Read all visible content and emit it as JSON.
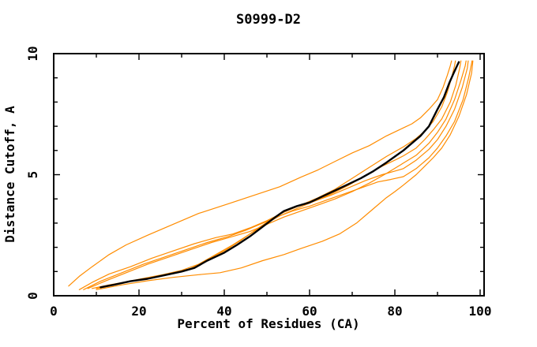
{
  "figure": {
    "background": "#ffffff"
  },
  "chart_data": {
    "type": "line",
    "title": "S0999-D2",
    "xlabel": "Percent of Residues (CA)",
    "ylabel": "Distance Cutoff, A",
    "xlim": [
      0,
      101
    ],
    "ylim": [
      0,
      10
    ],
    "grid": false,
    "legend": "none",
    "x_major_ticks": [
      0,
      20,
      40,
      60,
      80,
      100
    ],
    "x_tick_labels": [
      "0",
      "20",
      "40",
      "60",
      "80",
      "100"
    ],
    "x_minor_ticks": [
      10,
      30,
      50,
      70,
      90
    ],
    "y_major_ticks": [
      0,
      5,
      10
    ],
    "y_tick_labels": [
      "0",
      "5",
      "10"
    ],
    "y_minor_ticks": [
      1,
      2,
      3,
      4,
      6,
      7,
      8,
      9
    ],
    "colors": {
      "axis": "#000000",
      "primary_curve": "#000000",
      "comparison_curves": "#ff8c00"
    },
    "series": [
      {
        "name": "orange-outlier",
        "color": "#ff8c00",
        "width": 1.2,
        "points": [
          [
            3.5,
            0.4
          ],
          [
            6,
            0.8
          ],
          [
            9,
            1.2
          ],
          [
            13,
            1.7
          ],
          [
            17,
            2.1
          ],
          [
            22,
            2.5
          ],
          [
            28,
            2.95
          ],
          [
            34,
            3.4
          ],
          [
            41,
            3.8
          ],
          [
            47,
            4.15
          ],
          [
            53,
            4.5
          ],
          [
            58,
            4.9
          ],
          [
            62,
            5.2
          ],
          [
            66,
            5.55
          ],
          [
            70,
            5.9
          ],
          [
            74,
            6.2
          ],
          [
            78,
            6.6
          ],
          [
            81,
            6.85
          ],
          [
            84,
            7.1
          ],
          [
            86,
            7.35
          ],
          [
            88,
            7.7
          ],
          [
            90,
            8.1
          ],
          [
            91.3,
            8.6
          ],
          [
            92.3,
            9.1
          ],
          [
            93,
            9.5
          ],
          [
            93.3,
            9.7
          ]
        ]
      },
      {
        "name": "orange-2",
        "color": "#ff8c00",
        "width": 1.2,
        "points": [
          [
            6,
            0.25
          ],
          [
            9,
            0.55
          ],
          [
            13,
            0.9
          ],
          [
            18,
            1.2
          ],
          [
            23,
            1.55
          ],
          [
            28,
            1.85
          ],
          [
            33,
            2.15
          ],
          [
            38,
            2.4
          ],
          [
            42,
            2.55
          ],
          [
            46,
            2.8
          ],
          [
            50,
            3.1
          ],
          [
            54,
            3.45
          ],
          [
            58,
            3.75
          ],
          [
            62,
            4.05
          ],
          [
            66,
            4.4
          ],
          [
            70,
            4.85
          ],
          [
            74,
            5.3
          ],
          [
            78,
            5.75
          ],
          [
            82,
            6.15
          ],
          [
            85,
            6.5
          ],
          [
            87,
            6.8
          ],
          [
            89,
            7.2
          ],
          [
            91,
            7.8
          ],
          [
            92.3,
            8.4
          ],
          [
            93.3,
            9.0
          ],
          [
            94,
            9.5
          ],
          [
            94.2,
            9.7
          ]
        ]
      },
      {
        "name": "orange-3",
        "color": "#ff8c00",
        "width": 1.2,
        "points": [
          [
            7,
            0.25
          ],
          [
            11,
            0.6
          ],
          [
            16,
            0.95
          ],
          [
            21,
            1.3
          ],
          [
            26,
            1.6
          ],
          [
            31,
            1.9
          ],
          [
            36,
            2.2
          ],
          [
            41,
            2.45
          ],
          [
            45,
            2.7
          ],
          [
            49,
            3.0
          ],
          [
            53,
            3.3
          ],
          [
            57,
            3.6
          ],
          [
            61,
            3.9
          ],
          [
            65,
            4.2
          ],
          [
            69,
            4.55
          ],
          [
            73,
            4.95
          ],
          [
            77,
            5.35
          ],
          [
            80,
            5.6
          ],
          [
            82,
            5.78
          ],
          [
            85,
            6.1
          ],
          [
            87,
            6.45
          ],
          [
            89,
            6.85
          ],
          [
            91,
            7.3
          ],
          [
            93,
            8.0
          ],
          [
            94.3,
            8.7
          ],
          [
            95.2,
            9.4
          ],
          [
            95.5,
            9.7
          ]
        ]
      },
      {
        "name": "orange-4",
        "color": "#ff8c00",
        "width": 1.2,
        "points": [
          [
            8,
            0.3
          ],
          [
            12,
            0.6
          ],
          [
            17,
            0.95
          ],
          [
            22,
            1.3
          ],
          [
            27,
            1.6
          ],
          [
            32,
            1.9
          ],
          [
            37,
            2.2
          ],
          [
            42,
            2.45
          ],
          [
            46,
            2.65
          ],
          [
            50,
            2.95
          ],
          [
            54,
            3.25
          ],
          [
            58,
            3.5
          ],
          [
            62,
            3.75
          ],
          [
            66,
            4.0
          ],
          [
            70,
            4.3
          ],
          [
            74,
            4.65
          ],
          [
            78,
            5.05
          ],
          [
            82,
            5.48
          ],
          [
            85,
            5.8
          ],
          [
            88,
            6.3
          ],
          [
            90,
            6.75
          ],
          [
            92,
            7.3
          ],
          [
            94,
            8.1
          ],
          [
            95.5,
            8.9
          ],
          [
            96.5,
            9.5
          ],
          [
            96.7,
            9.7
          ]
        ]
      },
      {
        "name": "orange-5",
        "color": "#ff8c00",
        "width": 1.2,
        "points": [
          [
            9,
            0.3
          ],
          [
            13,
            0.45
          ],
          [
            18,
            0.6
          ],
          [
            23,
            0.75
          ],
          [
            28,
            0.95
          ],
          [
            32,
            1.1
          ],
          [
            36,
            1.5
          ],
          [
            40,
            1.85
          ],
          [
            44,
            2.3
          ],
          [
            48,
            2.8
          ],
          [
            51,
            3.15
          ],
          [
            54,
            3.5
          ],
          [
            57,
            3.68
          ],
          [
            61,
            3.9
          ],
          [
            65,
            4.15
          ],
          [
            69,
            4.45
          ],
          [
            73,
            4.75
          ],
          [
            77,
            5.0
          ],
          [
            80,
            5.15
          ],
          [
            82,
            5.25
          ],
          [
            85,
            5.6
          ],
          [
            88,
            6.05
          ],
          [
            90,
            6.45
          ],
          [
            92,
            7.0
          ],
          [
            94,
            7.7
          ],
          [
            95.8,
            8.6
          ],
          [
            97,
            9.4
          ],
          [
            97.2,
            9.7
          ]
        ]
      },
      {
        "name": "orange-6",
        "color": "#ff8c00",
        "width": 1.2,
        "points": [
          [
            10,
            0.3
          ],
          [
            15,
            0.5
          ],
          [
            20,
            0.68
          ],
          [
            25,
            0.85
          ],
          [
            30,
            1.05
          ],
          [
            34,
            1.3
          ],
          [
            38,
            1.7
          ],
          [
            42,
            2.1
          ],
          [
            46,
            2.55
          ],
          [
            50,
            3.0
          ],
          [
            53,
            3.3
          ],
          [
            56,
            3.5
          ],
          [
            60,
            3.7
          ],
          [
            64,
            3.95
          ],
          [
            68,
            4.2
          ],
          [
            72,
            4.45
          ],
          [
            76,
            4.7
          ],
          [
            79,
            4.8
          ],
          [
            82,
            4.92
          ],
          [
            85,
            5.25
          ],
          [
            88,
            5.7
          ],
          [
            90,
            6.1
          ],
          [
            92,
            6.6
          ],
          [
            94,
            7.2
          ],
          [
            96,
            8.1
          ],
          [
            97.3,
            9.0
          ],
          [
            98,
            9.6
          ],
          [
            98.1,
            9.7
          ]
        ]
      },
      {
        "name": "orange-laggard",
        "color": "#ff8c00",
        "width": 1.2,
        "points": [
          [
            10,
            0.25
          ],
          [
            16,
            0.45
          ],
          [
            22,
            0.62
          ],
          [
            28,
            0.76
          ],
          [
            34,
            0.87
          ],
          [
            39,
            0.95
          ],
          [
            44,
            1.15
          ],
          [
            49,
            1.45
          ],
          [
            54,
            1.7
          ],
          [
            58,
            1.95
          ],
          [
            63,
            2.25
          ],
          [
            67,
            2.55
          ],
          [
            71,
            3.0
          ],
          [
            75,
            3.6
          ],
          [
            78,
            4.05
          ],
          [
            80,
            4.3
          ],
          [
            82,
            4.57
          ],
          [
            85,
            5.0
          ],
          [
            87,
            5.35
          ],
          [
            89,
            5.7
          ],
          [
            91,
            6.1
          ],
          [
            93,
            6.65
          ],
          [
            95,
            7.4
          ],
          [
            96.8,
            8.3
          ],
          [
            98,
            9.2
          ],
          [
            98.3,
            9.7
          ]
        ]
      },
      {
        "name": "black-main",
        "color": "#000000",
        "width": 2.4,
        "points": [
          [
            11,
            0.35
          ],
          [
            14,
            0.45
          ],
          [
            18,
            0.6
          ],
          [
            22,
            0.7
          ],
          [
            26,
            0.85
          ],
          [
            30,
            1.0
          ],
          [
            33,
            1.15
          ],
          [
            36,
            1.45
          ],
          [
            40,
            1.78
          ],
          [
            43,
            2.1
          ],
          [
            46,
            2.45
          ],
          [
            49,
            2.85
          ],
          [
            52,
            3.25
          ],
          [
            54,
            3.5
          ],
          [
            57,
            3.7
          ],
          [
            60,
            3.85
          ],
          [
            63,
            4.1
          ],
          [
            66,
            4.35
          ],
          [
            69,
            4.6
          ],
          [
            72,
            4.85
          ],
          [
            75,
            5.15
          ],
          [
            78,
            5.5
          ],
          [
            80,
            5.75
          ],
          [
            82,
            6.0
          ],
          [
            84,
            6.3
          ],
          [
            86,
            6.6
          ],
          [
            88,
            7.0
          ],
          [
            90,
            7.7
          ],
          [
            91.5,
            8.2
          ],
          [
            92.8,
            8.8
          ],
          [
            93.8,
            9.2
          ],
          [
            94.6,
            9.5
          ],
          [
            95,
            9.65
          ]
        ]
      }
    ]
  }
}
